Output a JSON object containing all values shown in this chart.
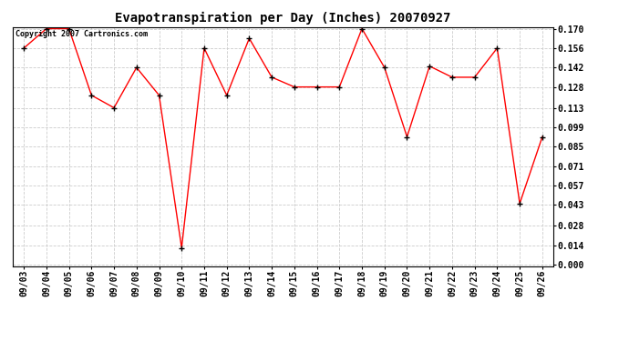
{
  "title": "Evapotranspiration per Day (Inches) 20070927",
  "copyright_text": "Copyright 2007 Cartronics.com",
  "dates": [
    "09/03",
    "09/04",
    "09/05",
    "09/06",
    "09/07",
    "09/08",
    "09/09",
    "09/10",
    "09/11",
    "09/12",
    "09/13",
    "09/14",
    "09/15",
    "09/16",
    "09/17",
    "09/18",
    "09/19",
    "09/20",
    "09/21",
    "09/22",
    "09/23",
    "09/24",
    "09/25",
    "09/26"
  ],
  "values": [
    0.156,
    0.17,
    0.17,
    0.122,
    0.113,
    0.142,
    0.122,
    0.012,
    0.156,
    0.122,
    0.163,
    0.135,
    0.128,
    0.128,
    0.128,
    0.17,
    0.142,
    0.092,
    0.143,
    0.135,
    0.135,
    0.156,
    0.044,
    0.092
  ],
  "ylim": [
    0.0,
    0.17
  ],
  "yticks": [
    0.0,
    0.014,
    0.028,
    0.043,
    0.057,
    0.071,
    0.085,
    0.099,
    0.113,
    0.128,
    0.142,
    0.156,
    0.17
  ],
  "line_color": "#ff0000",
  "marker": "+",
  "marker_size": 4,
  "marker_color": "#000000",
  "background_color": "#ffffff",
  "grid_color": "#cccccc",
  "title_fontsize": 10,
  "tick_fontsize": 7,
  "copyright_fontsize": 6
}
